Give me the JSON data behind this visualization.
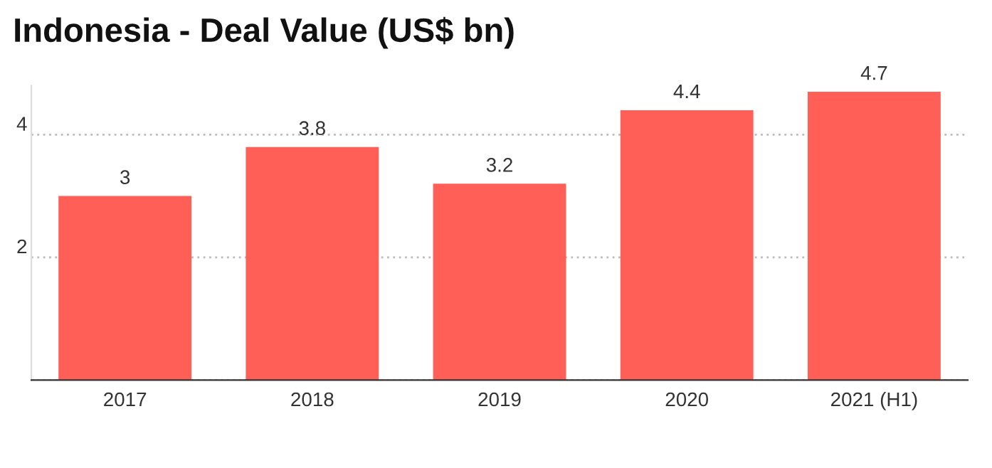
{
  "chart_data": {
    "type": "bar",
    "title": "Indonesia - Deal Value (US$ bn)",
    "categories": [
      "2017",
      "2018",
      "2019",
      "2020",
      "2021 (H1)"
    ],
    "values": [
      3,
      3.8,
      3.2,
      4.4,
      4.7
    ],
    "color": "#ff5f56",
    "ylim": [
      0,
      4.8
    ],
    "yticks": [
      {
        "value": 0,
        "label": null
      },
      2,
      4
    ],
    "grid": "y",
    "data_labels": true
  }
}
